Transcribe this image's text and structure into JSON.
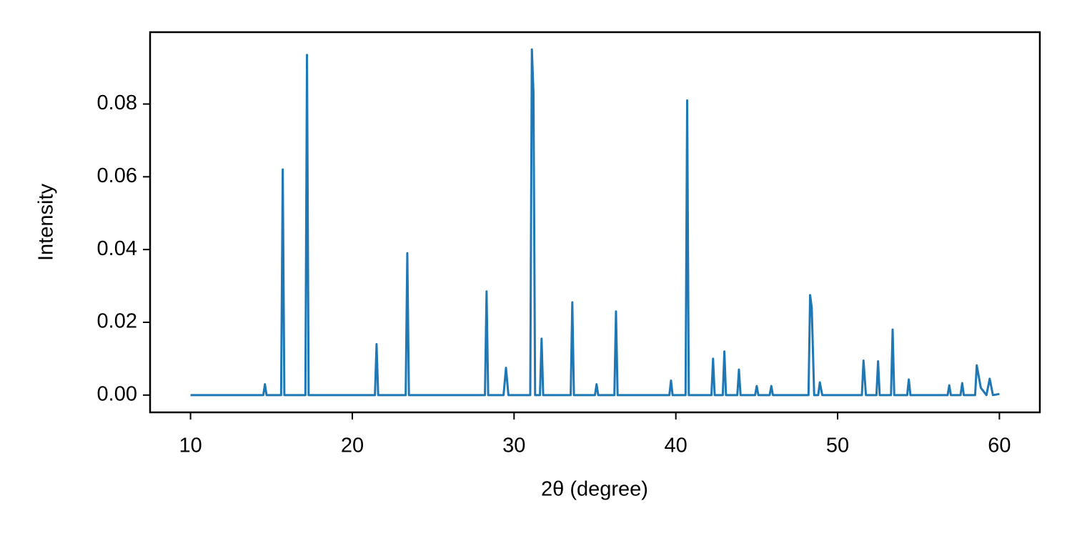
{
  "chart_data": {
    "type": "line",
    "xlabel": "2θ (degree)",
    "ylabel": "Intensity",
    "color": "#1f77b4",
    "x": [
      10,
      14.5,
      14.6,
      14.7,
      15.6,
      15.7,
      15.8,
      17.1,
      17.2,
      17.3,
      21.4,
      21.5,
      21.6,
      23.3,
      23.4,
      23.5,
      28.2,
      28.3,
      28.4,
      29.35,
      29.5,
      29.65,
      31.0,
      31.1,
      31.2,
      31.3,
      31.6,
      31.7,
      31.8,
      33.5,
      33.6,
      33.7,
      35.0,
      35.1,
      35.2,
      36.2,
      36.3,
      36.4,
      39.6,
      39.7,
      39.8,
      40.6,
      40.7,
      40.8,
      42.2,
      42.3,
      42.4,
      42.9,
      43.0,
      43.1,
      43.8,
      43.9,
      44.0,
      44.9,
      45.0,
      45.1,
      45.8,
      45.9,
      46.0,
      48.2,
      48.3,
      48.4,
      48.55,
      48.8,
      48.9,
      49.05,
      51.5,
      51.6,
      51.75,
      52.4,
      52.5,
      52.6,
      53.3,
      53.4,
      53.5,
      54.3,
      54.4,
      54.5,
      56.8,
      56.9,
      57.0,
      57.6,
      57.7,
      57.8,
      58.5,
      58.6,
      58.85,
      59.2,
      59.4,
      59.6,
      60
    ],
    "values": [
      0,
      0,
      0.003,
      0,
      0,
      0.062,
      0,
      0,
      0.0935,
      0,
      0,
      0.014,
      0,
      0,
      0.039,
      0,
      0,
      0.0285,
      0,
      0,
      0.0075,
      0,
      0,
      0.095,
      0.083,
      0,
      0,
      0.0155,
      0,
      0,
      0.0255,
      0,
      0,
      0.003,
      0,
      0,
      0.023,
      0,
      0,
      0.004,
      0,
      0,
      0.081,
      0,
      0,
      0.01,
      0,
      0,
      0.012,
      0,
      0,
      0.007,
      0,
      0,
      0.0025,
      0,
      0,
      0.0025,
      0,
      0,
      0.0275,
      0.024,
      0,
      0,
      0.0035,
      0,
      0,
      0.0095,
      0,
      0,
      0.0093,
      0,
      0,
      0.018,
      0,
      0,
      0.0043,
      0,
      0,
      0.0027,
      0,
      0,
      0.0033,
      0,
      0,
      0.0082,
      0.002,
      0,
      0.0045,
      0,
      0.0003
    ],
    "xlim": [
      7.5,
      62.5
    ],
    "xticks": [
      10,
      20,
      30,
      40,
      50,
      60
    ],
    "ylim": [
      -0.00475,
      0.09975
    ],
    "yticks": [
      {
        "value": 0,
        "label": "0.00"
      },
      {
        "value": 0.02,
        "label": "0.02"
      },
      {
        "value": 0.04,
        "label": "0.04"
      },
      {
        "value": 0.06,
        "label": "0.06"
      },
      {
        "value": 0.08,
        "label": "0.08"
      }
    ],
    "grid": false
  }
}
